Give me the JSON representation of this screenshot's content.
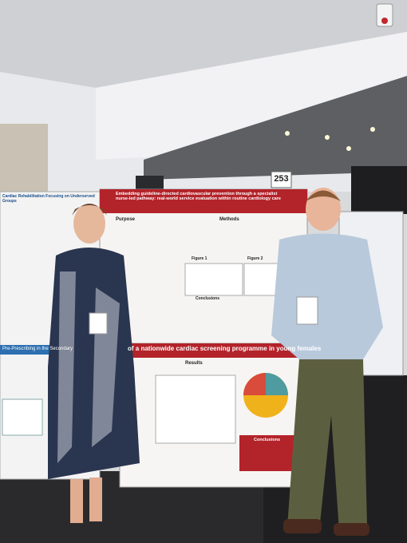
{
  "sign": "253",
  "left_poster": {
    "title": "Cardiac Rehabilitation Focusing on Underserved Groups",
    "section": "Pre-Prescribing in the Secondary"
  },
  "main_poster": {
    "title": "Embedding guideline-directed cardiovascular prevention through a specialist nurse-led pathway: real-world service evaluation within routine cardiology care",
    "sections": [
      "Purpose",
      "Methods",
      "Figure 1",
      "Figure 2",
      "Conclusions"
    ]
  },
  "lower_poster": {
    "title": "of a nationwide cardiac screening programme in young females",
    "sections": [
      "Results",
      "Conclusions"
    ]
  }
}
